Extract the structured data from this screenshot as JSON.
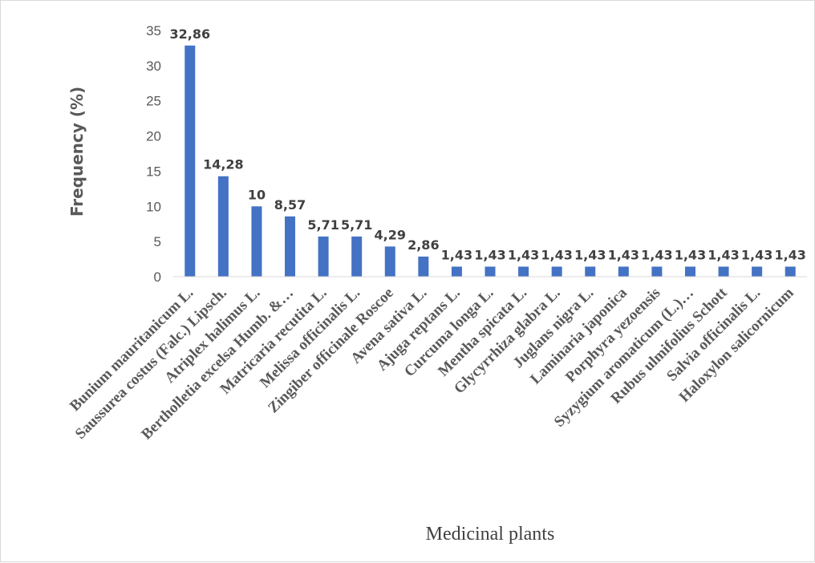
{
  "chart_data": {
    "type": "bar",
    "categories": [
      "Bunium mauritanicum L.",
      "Saussurea costus (Falc.) Lipsch.",
      "Atriplex halimus L.",
      "Bertholletia excelsa Humb. &…",
      "Matricaria recutita L.",
      "Melissa officinalis L.",
      "Zingiber officinale Roscoe",
      "Avena sativa L.",
      "Ajuga reptans L.",
      "Curcuma longa L.",
      "Mentha spicata L.",
      "Glycyrrhiza glabra L.",
      "Juglans nigra L.",
      "Laminaria japonica",
      "Porphyra yezoensis",
      "Syzygium aromaticum (L.)…",
      "Rubus ulmifolius Schott",
      "Salvia officinalis L.",
      "Haloxylon salicornicum"
    ],
    "values": [
      32.86,
      14.28,
      10,
      8.57,
      5.71,
      5.71,
      4.29,
      2.86,
      1.43,
      1.43,
      1.43,
      1.43,
      1.43,
      1.43,
      1.43,
      1.43,
      1.43,
      1.43,
      1.43
    ],
    "data_labels": [
      "32,86",
      "14,28",
      "10",
      "8,57",
      "5,71",
      "5,71",
      "4,29",
      "2,86",
      "1,43",
      "1,43",
      "1,43",
      "1,43",
      "1,43",
      "1,43",
      "1,43",
      "1,43",
      "1,43",
      "1,43",
      "1,43"
    ],
    "xlabel": "Medicinal plants",
    "ylabel": "Frequency (%)",
    "ylim": [
      0,
      35
    ],
    "yticks": [
      "0",
      "5",
      "10",
      "15",
      "20",
      "25",
      "30",
      "35"
    ],
    "grid": false,
    "legend": "none",
    "bar_color": "#4472c4"
  }
}
